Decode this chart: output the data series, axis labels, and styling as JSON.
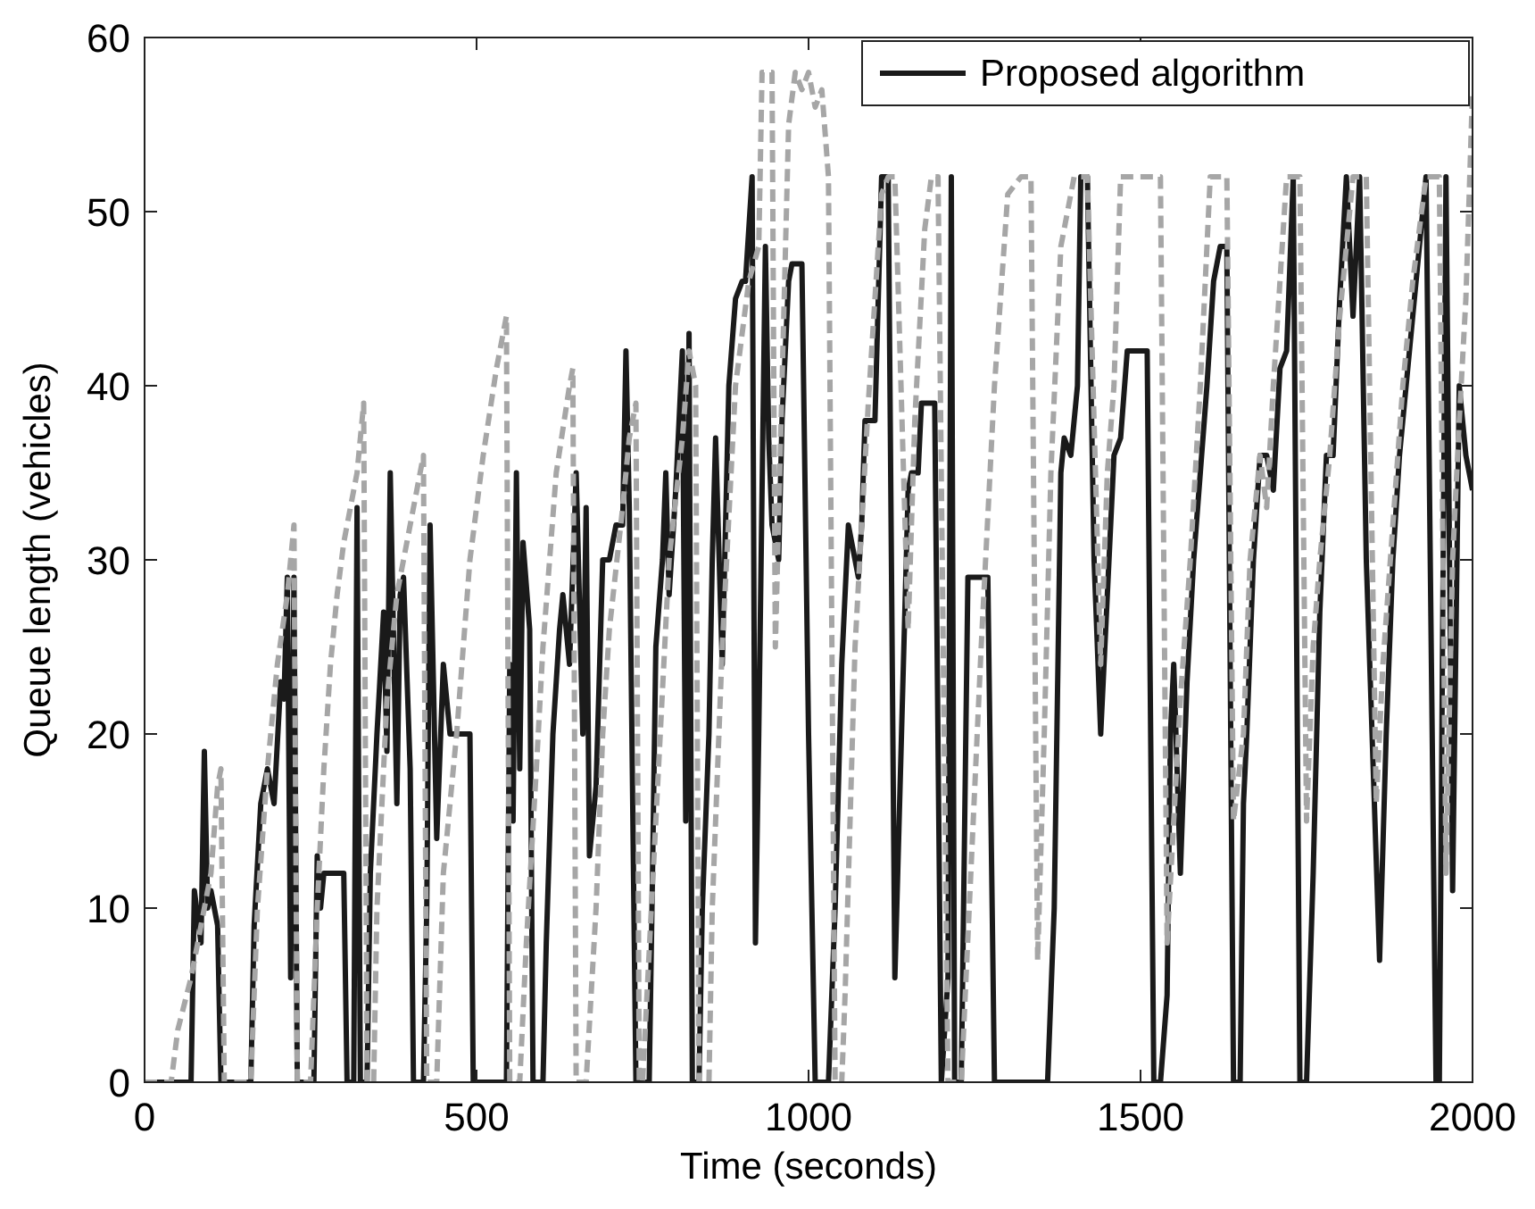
{
  "chart_data": {
    "type": "line",
    "xlabel": "Time (seconds)",
    "ylabel": "Queue length (vehicles)",
    "xlim": [
      0,
      2000
    ],
    "ylim": [
      0,
      60
    ],
    "xticks": [
      0,
      500,
      1000,
      1500,
      2000
    ],
    "yticks": [
      0,
      10,
      20,
      30,
      40,
      50,
      60
    ],
    "grid": false,
    "legend": "top right",
    "marker": "none",
    "series": [
      {
        "name": "Proposed algorithm",
        "color": "#1a1a1a",
        "line_style": "solid",
        "x": [
          0,
          70,
          75,
          85,
          90,
          95,
          100,
          110,
          115,
          160,
          165,
          175,
          185,
          195,
          205,
          210,
          215,
          220,
          225,
          230,
          255,
          260,
          265,
          270,
          300,
          305,
          315,
          320,
          325,
          335,
          340,
          350,
          360,
          365,
          370,
          380,
          385,
          390,
          400,
          405,
          420,
          425,
          430,
          440,
          450,
          460,
          490,
          495,
          545,
          550,
          555,
          560,
          565,
          570,
          580,
          585,
          600,
          605,
          615,
          625,
          630,
          640,
          650,
          660,
          665,
          670,
          680,
          690,
          700,
          710,
          720,
          725,
          730,
          740,
          760,
          765,
          770,
          780,
          785,
          790,
          800,
          810,
          815,
          820,
          825,
          835,
          840,
          850,
          855,
          860,
          870,
          880,
          890,
          900,
          905,
          915,
          920,
          925,
          935,
          940,
          945,
          955,
          960,
          970,
          975,
          990,
          1000,
          1010,
          1030,
          1040,
          1050,
          1060,
          1070,
          1075,
          1080,
          1085,
          1100,
          1110,
          1120,
          1130,
          1140,
          1150,
          1155,
          1165,
          1170,
          1190,
          1200,
          1210,
          1215,
          1220,
          1230,
          1240,
          1270,
          1280,
          1360,
          1370,
          1380,
          1385,
          1395,
          1405,
          1410,
          1420,
          1430,
          1440,
          1450,
          1460,
          1470,
          1480,
          1510,
          1520,
          1530,
          1540,
          1545,
          1550,
          1560,
          1570,
          1580,
          1590,
          1600,
          1610,
          1620,
          1630,
          1640,
          1650,
          1655,
          1660,
          1670,
          1680,
          1690,
          1700,
          1710,
          1720,
          1730,
          1740,
          1750,
          1760,
          1770,
          1780,
          1790,
          1800,
          1810,
          1820,
          1830,
          1840,
          1860,
          1870,
          1880,
          1890,
          1900,
          1910,
          1920,
          1930,
          1945,
          1950,
          1960,
          1970,
          1980,
          1990,
          2000
        ],
        "values": [
          0,
          0,
          11,
          8,
          19,
          10,
          11,
          9,
          0,
          0,
          9,
          16,
          18,
          16,
          23,
          22,
          29,
          6,
          29,
          0,
          0,
          13,
          10,
          12,
          12,
          0,
          0,
          33,
          0,
          0,
          12,
          20,
          27,
          19,
          35,
          16,
          28,
          29,
          18,
          0,
          0,
          10,
          32,
          14,
          24,
          20,
          20,
          0,
          0,
          24,
          15,
          35,
          18,
          31,
          26,
          0,
          0,
          8,
          20,
          26,
          28,
          24,
          35,
          20,
          33,
          13,
          17,
          30,
          30,
          32,
          32,
          42,
          33,
          0,
          0,
          12,
          25,
          30,
          35,
          28,
          34,
          42,
          15,
          43,
          0,
          0,
          10,
          20,
          30,
          37,
          24,
          40,
          45,
          46,
          46,
          52,
          8,
          20,
          48,
          37,
          32,
          30,
          38,
          46,
          47,
          47,
          20,
          0,
          0,
          10,
          24,
          32,
          30,
          29,
          32,
          38,
          38,
          52,
          52,
          6,
          20,
          34,
          35,
          35,
          39,
          39,
          0,
          6,
          52,
          0,
          0,
          29,
          29,
          0,
          0,
          10,
          35,
          37,
          36,
          40,
          52,
          52,
          30,
          20,
          28,
          36,
          37,
          42,
          42,
          0,
          0,
          5,
          20,
          24,
          12,
          23,
          30,
          35,
          40,
          46,
          48,
          48,
          0,
          0,
          16,
          20,
          30,
          36,
          36,
          34,
          41,
          42,
          52,
          0,
          0,
          12,
          27,
          36,
          36,
          45,
          52,
          44,
          52,
          30,
          7,
          20,
          30,
          36,
          40,
          44,
          48,
          52,
          0,
          0,
          52,
          11,
          40,
          36,
          34
        ]
      },
      {
        "color": "#a6a6a6",
        "line_style": "dashed",
        "x": [
          0,
          40,
          50,
          70,
          90,
          100,
          110,
          115,
          120,
          160,
          170,
          185,
          200,
          215,
          225,
          230,
          250,
          260,
          270,
          280,
          290,
          300,
          320,
          330,
          335,
          345,
          350,
          365,
          380,
          390,
          410,
          420,
          425,
          440,
          450,
          470,
          490,
          510,
          530,
          540,
          545,
          550,
          565,
          575,
          590,
          600,
          620,
          640,
          645,
          650,
          665,
          680,
          690,
          700,
          720,
          730,
          740,
          745,
          750,
          770,
          790,
          810,
          820,
          830,
          835,
          850,
          855,
          870,
          890,
          910,
          925,
          930,
          945,
          950,
          960,
          970,
          980,
          990,
          1000,
          1010,
          1020,
          1030,
          1040,
          1050,
          1055,
          1070,
          1090,
          1100,
          1110,
          1120,
          1130,
          1150,
          1160,
          1175,
          1185,
          1195,
          1210,
          1230,
          1260,
          1280,
          1300,
          1320,
          1335,
          1345,
          1355,
          1365,
          1380,
          1400,
          1420,
          1440,
          1450,
          1460,
          1470,
          1500,
          1530,
          1540,
          1550,
          1560,
          1575,
          1590,
          1605,
          1630,
          1640,
          1655,
          1665,
          1680,
          1690,
          1700,
          1720,
          1740,
          1750,
          1760,
          1770,
          1785,
          1800,
          1820,
          1840,
          1855,
          1865,
          1880,
          1895,
          1910,
          1930,
          1950,
          1960,
          1970,
          1980,
          1990,
          2000
        ],
        "values": [
          0,
          0,
          3,
          6,
          10,
          12,
          17,
          18,
          0,
          0,
          10,
          18,
          24,
          28,
          32,
          0,
          0,
          10,
          18,
          24,
          28,
          31,
          35,
          39,
          0,
          0,
          10,
          22,
          28,
          30,
          34,
          36,
          0,
          0,
          12,
          20,
          30,
          36,
          41,
          43,
          44,
          0,
          0,
          8,
          18,
          25,
          35,
          40,
          41,
          0,
          0,
          10,
          20,
          26,
          33,
          37,
          39,
          0,
          0,
          15,
          30,
          37,
          42,
          40,
          0,
          0,
          10,
          25,
          40,
          46,
          48,
          58,
          58,
          25,
          40,
          55,
          58,
          57,
          58,
          56,
          57,
          52,
          0,
          0,
          5,
          25,
          39,
          45,
          51,
          52,
          52,
          26,
          38,
          49,
          52,
          52,
          0,
          0,
          25,
          40,
          51,
          52,
          52,
          7,
          20,
          35,
          48,
          52,
          52,
          24,
          35,
          40,
          52,
          52,
          52,
          8,
          15,
          22,
          30,
          40,
          52,
          52,
          15,
          20,
          30,
          36,
          33,
          40,
          52,
          52,
          15,
          25,
          30,
          36,
          44,
          52,
          52,
          16,
          24,
          32,
          40,
          46,
          52,
          52,
          12,
          30,
          38,
          45,
          57
        ]
      }
    ]
  }
}
